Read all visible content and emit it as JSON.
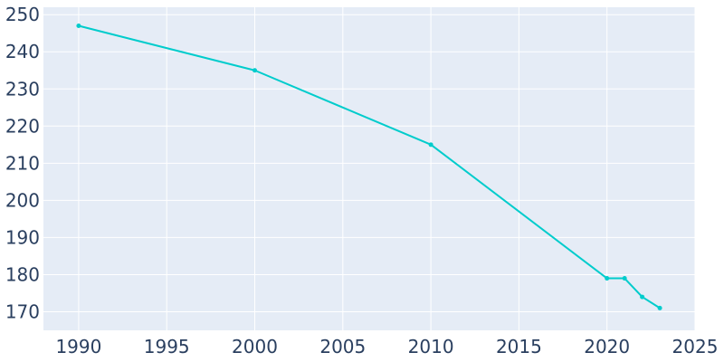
{
  "chart_data": {
    "type": "line",
    "title": "",
    "xlabel": "",
    "ylabel": "",
    "x": [
      1990,
      2000,
      2010,
      2020,
      2021,
      2022,
      2023
    ],
    "series": [
      {
        "values": [
          247,
          235,
          215,
          179,
          179,
          174,
          171
        ]
      }
    ],
    "xlim": [
      1988,
      2025
    ],
    "ylim": [
      165,
      252
    ],
    "x_ticks": [
      1990,
      1995,
      2000,
      2005,
      2010,
      2015,
      2020,
      2025
    ],
    "y_ticks": [
      170,
      180,
      190,
      200,
      210,
      220,
      230,
      240,
      250
    ],
    "grid": true,
    "legend": "none",
    "colors": {
      "plot_background": "#e5ecf6",
      "grid": "#ffffff",
      "line": "#00cccc",
      "tick_text": "#2a3f5f"
    }
  }
}
